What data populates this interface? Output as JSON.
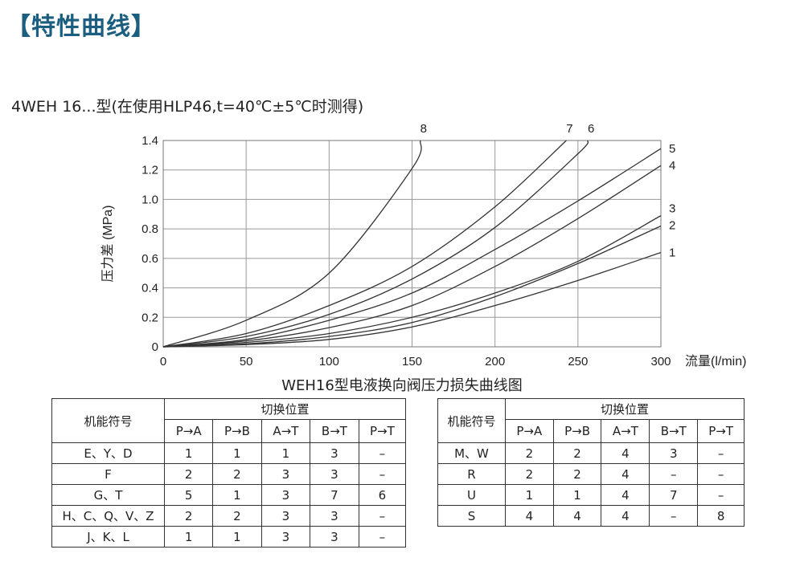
{
  "page": {
    "title": "【特性曲线】",
    "subtitle": "4WEH  16...型(在使用HLP46,t=40℃±5℃时测得)",
    "caption": "WEH16型电液换向阀压力损失曲线图"
  },
  "chart_data": {
    "type": "line",
    "xlabel": "流量(l/min)",
    "ylabel": "压力差 (MPa)",
    "xlim": [
      0,
      300
    ],
    "ylim": [
      0,
      1.4
    ],
    "xticks": [
      "0",
      "50",
      "100",
      "150",
      "200",
      "250",
      "300"
    ],
    "yticks": [
      "0",
      "0.2",
      "0.4",
      "0.6",
      "0.8",
      "1.0",
      "1.2",
      "1.4"
    ],
    "grid": true,
    "line_color": "#333333",
    "series": [
      {
        "name": "1",
        "x": [
          0,
          50,
          100,
          150,
          200,
          250,
          300
        ],
        "y": [
          0,
          0.015,
          0.05,
          0.135,
          0.28,
          0.45,
          0.64
        ]
      },
      {
        "name": "2",
        "x": [
          0,
          50,
          100,
          150,
          200,
          250,
          300
        ],
        "y": [
          0,
          0.02,
          0.07,
          0.165,
          0.34,
          0.565,
          0.82
        ]
      },
      {
        "name": "3",
        "x": [
          0,
          50,
          100,
          150,
          200,
          250,
          300
        ],
        "y": [
          0,
          0.03,
          0.09,
          0.2,
          0.365,
          0.58,
          0.89
        ]
      },
      {
        "name": "4",
        "x": [
          0,
          50,
          100,
          150,
          200,
          250,
          300
        ],
        "y": [
          0,
          0.04,
          0.13,
          0.28,
          0.545,
          0.87,
          1.23
        ]
      },
      {
        "name": "5",
        "x": [
          0,
          50,
          100,
          150,
          200,
          250,
          300
        ],
        "y": [
          0,
          0.05,
          0.18,
          0.365,
          0.66,
          0.99,
          1.345
        ]
      },
      {
        "name": "6",
        "x": [
          0,
          50,
          100,
          150,
          200,
          250,
          256
        ],
        "y": [
          0,
          0.07,
          0.22,
          0.46,
          0.81,
          1.31,
          1.4
        ]
      },
      {
        "name": "7",
        "x": [
          0,
          50,
          100,
          150,
          200,
          243
        ],
        "y": [
          0,
          0.09,
          0.28,
          0.545,
          0.95,
          1.4
        ]
      },
      {
        "name": "8",
        "x": [
          0,
          50,
          100,
          150,
          155
        ],
        "y": [
          0,
          0.18,
          0.5,
          1.21,
          1.4
        ]
      }
    ]
  },
  "tables": {
    "left": {
      "col_header": "机能符号",
      "group_header": "切换位置",
      "columns": [
        "P→A",
        "P→B",
        "A→T",
        "B→T",
        "P→T"
      ],
      "rows": [
        [
          "E、Y、D",
          "1",
          "1",
          "1",
          "3",
          "–"
        ],
        [
          "F",
          "2",
          "2",
          "3",
          "3",
          "–"
        ],
        [
          "G、T",
          "5",
          "1",
          "3",
          "7",
          "6"
        ],
        [
          "H、C、Q、V、Z",
          "2",
          "2",
          "3",
          "3",
          "–"
        ],
        [
          "J、K、L",
          "1",
          "1",
          "3",
          "3",
          "–"
        ]
      ]
    },
    "right": {
      "col_header": "机能符号",
      "group_header": "切换位置",
      "columns": [
        "P→A",
        "P→B",
        "A→T",
        "B→T",
        "P→T"
      ],
      "rows": [
        [
          "M、W",
          "2",
          "2",
          "4",
          "3",
          "–"
        ],
        [
          "R",
          "2",
          "2",
          "4",
          "–",
          "–"
        ],
        [
          "U",
          "1",
          "1",
          "4",
          "7",
          "–"
        ],
        [
          "S",
          "4",
          "4",
          "4",
          "–",
          "8"
        ]
      ]
    }
  }
}
